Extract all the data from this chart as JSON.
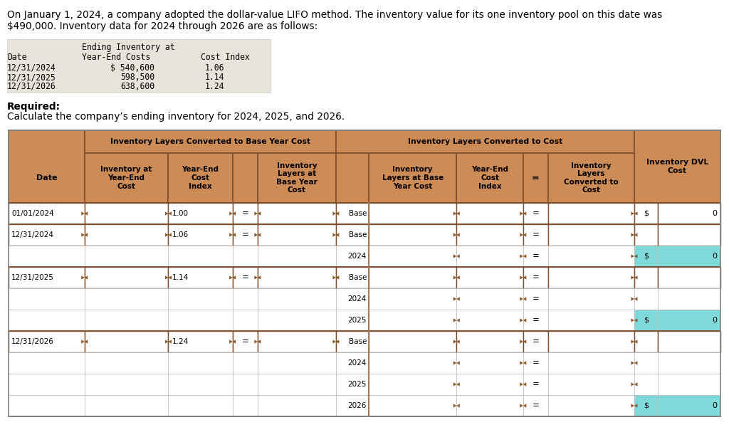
{
  "title_line1": "On January 1, 2024, a company adopted the dollar-value LIFO method. The inventory value for its one inventory pool on this date was",
  "title_line2": "$490,000. Inventory data for 2024 through 2026 are as follows:",
  "required_bold": "Required:",
  "required_normal": "Calculate the company’s ending inventory for 2024, 2025, and 2026.",
  "top_rows": [
    [
      "12/31/2024",
      "$ 540,600",
      "1.06"
    ],
    [
      "12/31/2025",
      "598,500",
      "1.14"
    ],
    [
      "12/31/2026",
      "638,600",
      "1.24"
    ]
  ],
  "orange": "#CD8B55",
  "white": "#FFFFFF",
  "cyan": "#7FD9D9",
  "light_gray": "#E8E4DC",
  "dark_border": "#7B4F2E",
  "mid_border": "#A0785A",
  "light_border": "#C0A080",
  "tri_color": "#8B5A2B",
  "rows_info": [
    {
      "date": "01/01/2024",
      "idx": "1.00",
      "has_eq": true,
      "lbl": "Base",
      "has_dvl": true,
      "dvl_cyan": false
    },
    {
      "date": "12/31/2024",
      "idx": "1.06",
      "has_eq": true,
      "lbl": "Base",
      "has_dvl": false,
      "dvl_cyan": false
    },
    {
      "date": null,
      "idx": null,
      "has_eq": false,
      "lbl": "2024",
      "has_dvl": true,
      "dvl_cyan": true
    },
    {
      "date": "12/31/2025",
      "idx": "1.14",
      "has_eq": true,
      "lbl": "Base",
      "has_dvl": false,
      "dvl_cyan": false
    },
    {
      "date": null,
      "idx": null,
      "has_eq": false,
      "lbl": "2024",
      "has_dvl": false,
      "dvl_cyan": false
    },
    {
      "date": null,
      "idx": null,
      "has_eq": false,
      "lbl": "2025",
      "has_dvl": true,
      "dvl_cyan": true
    },
    {
      "date": "12/31/2026",
      "idx": "1.24",
      "has_eq": true,
      "lbl": "Base",
      "has_dvl": false,
      "dvl_cyan": false
    },
    {
      "date": null,
      "idx": null,
      "has_eq": false,
      "lbl": "2024",
      "has_dvl": false,
      "dvl_cyan": false
    },
    {
      "date": null,
      "idx": null,
      "has_eq": false,
      "lbl": "2025",
      "has_dvl": false,
      "dvl_cyan": false
    },
    {
      "date": null,
      "idx": null,
      "has_eq": false,
      "lbl": "2026",
      "has_dvl": true,
      "dvl_cyan": true
    }
  ]
}
